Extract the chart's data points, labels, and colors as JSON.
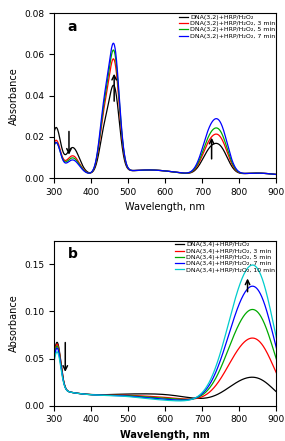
{
  "panel_a": {
    "label": "a",
    "xlabel": "Wavelength, nm",
    "ylabel": "Absorbance",
    "xlim": [
      300,
      900
    ],
    "ylim": [
      0.0,
      0.08
    ],
    "yticks": [
      0.0,
      0.02,
      0.04,
      0.06,
      0.08
    ],
    "legend": [
      "DNA(3,2)+HRP/H₂O₂",
      "DNA(3,2)+HRP/H₂O₂, 3 min",
      "DNA(3,2)+HRP/H₂O₂, 5 min",
      "DNA(3,2)+HRP/H₂O₂, 7 min"
    ],
    "colors": [
      "#000000",
      "#ff0000",
      "#00aa00",
      "#0000ff"
    ]
  },
  "panel_b": {
    "label": "b",
    "xlabel": "Wavelength, nm",
    "ylabel": "Absorbance",
    "xlim": [
      300,
      900
    ],
    "ylim": [
      0.0,
      0.175
    ],
    "yticks": [
      0.0,
      0.05,
      0.1,
      0.15
    ],
    "legend": [
      "DNA(3,4)+HRP/H₂O₂",
      "DNA(3,4)+HRP/H₂O₂, 3 min",
      "DNA(3,4)+HRP/H₂O₂, 5 min",
      "DNA(3,4)+HRP/H₂O₂, 7 min",
      "DNA(3,4)+HRP/H₂O₂, 10 min"
    ],
    "colors": [
      "#000000",
      "#ff0000",
      "#00aa00",
      "#0000ff",
      "#00cccc"
    ]
  }
}
